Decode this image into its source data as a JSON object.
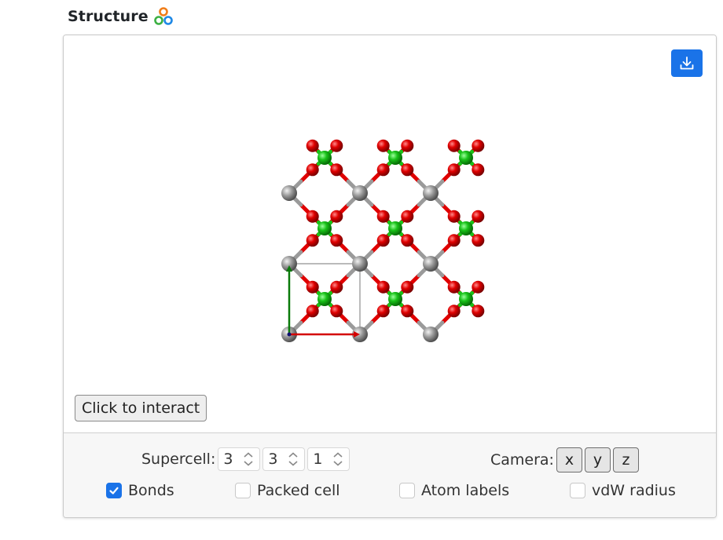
{
  "header": {
    "title": "Structure",
    "logo_icon": "atoms-logo-icon"
  },
  "viewer": {
    "download_icon": "download-icon",
    "interact_label": "Click to interact",
    "colors": {
      "oxygen": "#e00000",
      "silicon": "#9a9a9a",
      "green_atom": "#19c219",
      "axis_a": "#d40000",
      "axis_b": "#0a7a0a",
      "axis_c": "#101070",
      "accent": "#1a73e8"
    }
  },
  "controls": {
    "supercell_label": "Supercell:",
    "supercell": [
      "3",
      "3",
      "1"
    ],
    "camera_label": "Camera:",
    "camera_buttons": [
      "x",
      "y",
      "z"
    ],
    "checkboxes": [
      {
        "label": "Bonds",
        "checked": true
      },
      {
        "label": "Packed cell",
        "checked": false
      },
      {
        "label": "Atom labels",
        "checked": false
      },
      {
        "label": "vdW radius",
        "checked": false
      }
    ]
  }
}
